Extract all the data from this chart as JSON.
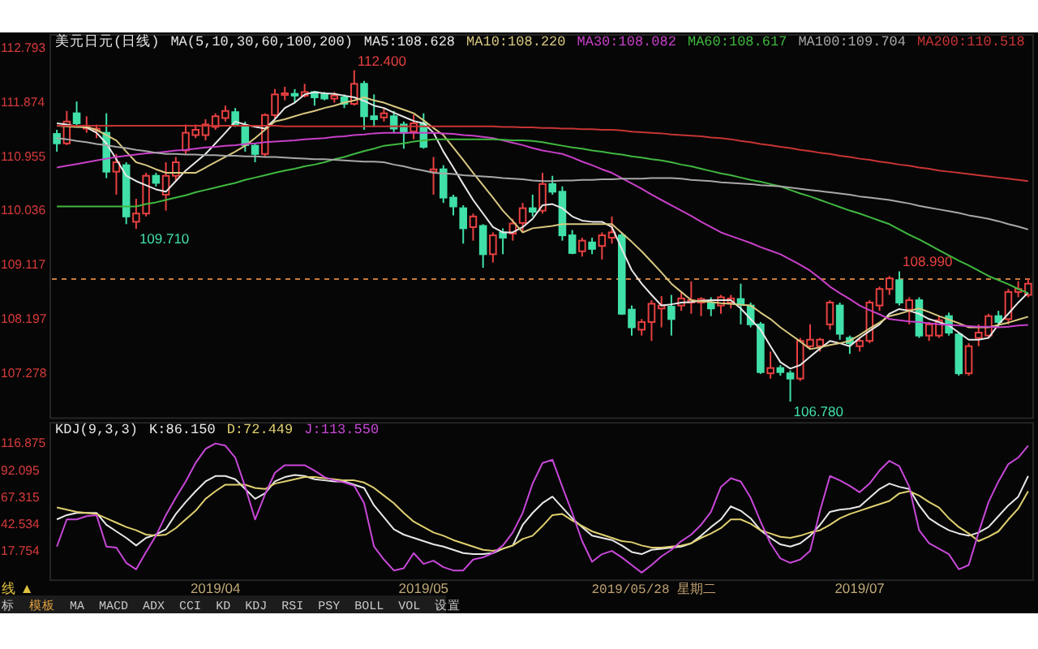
{
  "chart_data": [
    {
      "type": "candlestick",
      "title": "美元日元(日线)",
      "legend_title": "MA(5,10,30,60,100,200)",
      "legend": "top",
      "categories": [
        null,
        null,
        null,
        null,
        null,
        null,
        null,
        null,
        null,
        null,
        null,
        null,
        null,
        null,
        null,
        null,
        null,
        null,
        null,
        null,
        null,
        null,
        null,
        null,
        null,
        null,
        null,
        null,
        null,
        null,
        null,
        null,
        null,
        null,
        null,
        null,
        null,
        null,
        null,
        null,
        null,
        null,
        null,
        null,
        null,
        null,
        null,
        null,
        null,
        null,
        null,
        null,
        null,
        null,
        null,
        null,
        null,
        null,
        null,
        null,
        null,
        null,
        null,
        null,
        null,
        null,
        null,
        null,
        null,
        null,
        null,
        null,
        null,
        null,
        null,
        null,
        null,
        null,
        null,
        null,
        null,
        null,
        null,
        null,
        null,
        null,
        null,
        null,
        null,
        null,
        null,
        null,
        null,
        null,
        null,
        null,
        null,
        null,
        null
      ],
      "ohlc": [
        [
          111.32,
          111.39,
          111.02,
          111.16
        ],
        [
          111.16,
          111.71,
          111.13,
          111.53
        ],
        [
          111.67,
          111.87,
          111.46,
          111.5
        ],
        [
          111.41,
          111.62,
          111.34,
          111.46
        ],
        [
          111.37,
          111.48,
          111.25,
          111.41
        ],
        [
          111.34,
          111.67,
          110.57,
          110.68
        ],
        [
          110.68,
          110.98,
          110.29,
          110.84
        ],
        [
          110.79,
          110.84,
          109.79,
          109.92
        ],
        [
          109.83,
          110.22,
          109.71,
          109.97
        ],
        [
          109.97,
          110.66,
          109.92,
          110.61
        ],
        [
          110.61,
          110.66,
          110.43,
          110.49
        ],
        [
          110.29,
          110.84,
          110.02,
          110.61
        ],
        [
          110.61,
          110.93,
          110.52,
          110.84
        ],
        [
          111.04,
          111.48,
          110.98,
          111.34
        ],
        [
          111.3,
          111.48,
          111.25,
          111.39
        ],
        [
          111.3,
          111.57,
          111.21,
          111.48
        ],
        [
          111.44,
          111.67,
          111.39,
          111.62
        ],
        [
          111.59,
          111.8,
          111.53,
          111.71
        ],
        [
          111.69,
          111.76,
          111.44,
          111.48
        ],
        [
          111.44,
          111.53,
          111.02,
          111.13
        ],
        [
          111.12,
          111.16,
          110.84,
          110.98
        ],
        [
          110.98,
          111.67,
          110.93,
          111.64
        ],
        [
          111.64,
          112.08,
          111.57,
          111.99
        ],
        [
          111.98,
          112.12,
          111.89,
          112.01
        ],
        [
          112.0,
          112.08,
          111.85,
          111.97
        ],
        [
          111.97,
          112.17,
          111.94,
          112.03
        ],
        [
          112.03,
          112.05,
          111.8,
          111.94
        ],
        [
          111.99,
          112.03,
          111.89,
          111.92
        ],
        [
          111.92,
          112.03,
          111.85,
          111.97
        ],
        [
          111.94,
          111.99,
          111.76,
          111.83
        ],
        [
          111.83,
          112.4,
          111.8,
          112.17
        ],
        [
          112.17,
          112.22,
          111.39,
          111.62
        ],
        [
          111.62,
          111.99,
          111.44,
          111.57
        ],
        [
          111.6,
          111.76,
          111.53,
          111.67
        ],
        [
          111.62,
          111.71,
          111.34,
          111.41
        ],
        [
          111.48,
          111.53,
          111.07,
          111.34
        ],
        [
          111.36,
          111.65,
          111.23,
          111.5
        ],
        [
          111.5,
          111.67,
          111.07,
          111.1
        ],
        [
          110.68,
          110.93,
          110.29,
          110.72
        ],
        [
          110.72,
          110.79,
          110.15,
          110.24
        ],
        [
          110.24,
          110.29,
          109.94,
          110.09
        ],
        [
          110.06,
          110.11,
          109.46,
          109.72
        ],
        [
          109.74,
          109.97,
          109.51,
          109.92
        ],
        [
          109.76,
          109.79,
          109.05,
          109.28
        ],
        [
          109.28,
          109.65,
          109.14,
          109.6
        ],
        [
          109.65,
          109.72,
          109.28,
          109.56
        ],
        [
          109.63,
          109.88,
          109.51,
          109.8
        ],
        [
          109.81,
          110.15,
          109.65,
          110.06
        ],
        [
          110.06,
          110.29,
          109.92,
          110.0
        ],
        [
          110.02,
          110.66,
          109.97,
          110.47
        ],
        [
          110.47,
          110.61,
          110.29,
          110.34
        ],
        [
          110.34,
          110.43,
          109.51,
          109.6
        ],
        [
          109.6,
          109.69,
          109.28,
          109.3
        ],
        [
          109.33,
          109.56,
          109.24,
          109.51
        ],
        [
          109.48,
          109.56,
          109.28,
          109.37
        ],
        [
          109.42,
          109.65,
          109.19,
          109.6
        ],
        [
          109.56,
          109.92,
          109.46,
          109.65
        ],
        [
          109.6,
          109.65,
          108.25,
          108.27
        ],
        [
          108.34,
          108.41,
          107.9,
          108.04
        ],
        [
          108.0,
          108.18,
          107.9,
          108.13
        ],
        [
          108.13,
          108.5,
          107.81,
          108.44
        ],
        [
          108.36,
          108.57,
          108.04,
          108.41
        ],
        [
          108.39,
          108.59,
          107.9,
          108.18
        ],
        [
          108.41,
          108.64,
          108.32,
          108.53
        ],
        [
          108.46,
          108.82,
          108.27,
          108.5
        ],
        [
          108.46,
          108.55,
          108.23,
          108.52
        ],
        [
          108.46,
          108.55,
          108.23,
          108.36
        ],
        [
          108.41,
          108.59,
          108.27,
          108.55
        ],
        [
          108.46,
          108.59,
          108.36,
          108.53
        ],
        [
          108.52,
          108.78,
          108.09,
          108.44
        ],
        [
          108.41,
          108.46,
          108.04,
          108.09
        ],
        [
          108.09,
          108.13,
          107.25,
          107.28
        ],
        [
          107.26,
          107.63,
          107.17,
          107.35
        ],
        [
          107.35,
          107.4,
          107.22,
          107.28
        ],
        [
          107.26,
          107.31,
          106.78,
          107.17
        ],
        [
          107.17,
          107.86,
          107.13,
          107.81
        ],
        [
          107.72,
          108.09,
          107.68,
          107.83
        ],
        [
          107.72,
          107.86,
          107.63,
          107.83
        ],
        [
          108.09,
          108.5,
          108.0,
          108.46
        ],
        [
          108.41,
          108.46,
          107.83,
          107.93
        ],
        [
          107.86,
          107.9,
          107.59,
          107.77
        ],
        [
          107.72,
          107.86,
          107.63,
          107.81
        ],
        [
          107.81,
          108.5,
          107.77,
          108.46
        ],
        [
          108.41,
          108.73,
          108.32,
          108.69
        ],
        [
          108.69,
          108.91,
          108.59,
          108.87
        ],
        [
          108.84,
          108.99,
          108.41,
          108.46
        ],
        [
          108.34,
          108.55,
          108.09,
          108.5
        ],
        [
          108.5,
          108.55,
          107.86,
          107.9
        ],
        [
          107.9,
          108.13,
          107.81,
          108.09
        ],
        [
          107.9,
          108.23,
          107.86,
          108.16
        ],
        [
          108.23,
          108.29,
          107.9,
          107.95
        ],
        [
          107.92,
          107.95,
          107.22,
          107.26
        ],
        [
          107.26,
          107.77,
          107.22,
          107.72
        ],
        [
          107.86,
          108.09,
          107.72,
          107.95
        ],
        [
          107.9,
          108.27,
          107.86,
          108.23
        ],
        [
          108.23,
          108.32,
          108.04,
          108.13
        ],
        [
          108.18,
          108.69,
          108.09,
          108.64
        ],
        [
          108.64,
          108.82,
          108.55,
          108.69
        ],
        [
          108.59,
          108.87,
          108.55,
          108.78
        ]
      ],
      "colors": [
        "#40e0a8",
        "#e84040",
        "#40e0a8",
        "#e84040",
        "#e84040",
        "#40e0a8",
        "#e84040",
        "#40e0a8",
        "#e84040",
        "#e84040",
        "#40e0a8",
        "#e84040",
        "#e84040",
        "#e84040",
        "#e84040",
        "#e84040",
        "#e84040",
        "#e84040",
        "#40e0a8",
        "#40e0a8",
        "#40e0a8",
        "#e84040",
        "#e84040",
        "#e84040",
        "#40e0a8",
        "#e84040",
        "#40e0a8",
        "#40e0a8",
        "#e84040",
        "#40e0a8",
        "#e84040",
        "#40e0a8",
        "#40e0a8",
        "#e84040",
        "#40e0a8",
        "#40e0a8",
        "#e84040",
        "#40e0a8",
        "#e84040",
        "#40e0a8",
        "#40e0a8",
        "#40e0a8",
        "#e84040",
        "#40e0a8",
        "#e84040",
        "#40e0a8",
        "#e84040",
        "#e84040",
        "#40e0a8",
        "#e84040",
        "#40e0a8",
        "#40e0a8",
        "#40e0a8",
        "#e84040",
        "#40e0a8",
        "#e84040",
        "#e84040",
        "#40e0a8",
        "#40e0a8",
        "#e84040",
        "#e84040",
        "#e84040",
        "#40e0a8",
        "#e84040",
        "#e84040",
        "#e84040",
        "#40e0a8",
        "#e84040",
        "#e84040",
        "#40e0a8",
        "#40e0a8",
        "#40e0a8",
        "#e84040",
        "#40e0a8",
        "#40e0a8",
        "#e84040",
        "#e84040",
        "#e84040",
        "#e84040",
        "#40e0a8",
        "#40e0a8",
        "#e84040",
        "#e84040",
        "#e84040",
        "#e84040",
        "#40e0a8",
        "#e84040",
        "#40e0a8",
        "#e84040",
        "#e84040",
        "#40e0a8",
        "#40e0a8",
        "#e84040",
        "#e84040",
        "#e84040",
        "#40e0a8",
        "#e84040",
        "#e84040",
        "#e84040"
      ],
      "series": [
        {
          "name": "MA5:108.628",
          "type": "line",
          "color": "#e8e8e8",
          "values": [
            111.5,
            111.48,
            111.45,
            111.43,
            111.34,
            111.16,
            110.89,
            110.61,
            110.52,
            110.45,
            110.38,
            110.34,
            110.52,
            110.7,
            110.84,
            110.98,
            111.16,
            111.34,
            111.53,
            111.48,
            111.44,
            111.41,
            111.57,
            111.76,
            111.85,
            111.99,
            112.03,
            112.01,
            112.0,
            111.97,
            111.94,
            111.88,
            111.8,
            111.76,
            111.68,
            111.61,
            111.54,
            111.5,
            111.34,
            111.02,
            110.75,
            110.47,
            110.2,
            109.97,
            109.74,
            109.65,
            109.65,
            109.74,
            109.88,
            110.11,
            110.13,
            110.06,
            109.92,
            109.85,
            109.83,
            109.83,
            109.74,
            109.37,
            109.01,
            108.78,
            108.59,
            108.41,
            108.43,
            108.46,
            108.47,
            108.49,
            108.5,
            108.5,
            108.5,
            108.36,
            108.18,
            108.0,
            107.72,
            107.45,
            107.34,
            107.4,
            107.54,
            107.68,
            107.81,
            107.77,
            107.72,
            107.86,
            107.98,
            108.09,
            108.27,
            108.35,
            108.32,
            108.27,
            108.18,
            108.13,
            108.07,
            107.95,
            107.83,
            107.83,
            107.86,
            108.09,
            108.27,
            108.46,
            108.63
          ]
        },
        {
          "name": "MA10:108.220",
          "type": "line",
          "color": "#d8c880",
          "values": [
            111.46,
            111.45,
            111.44,
            111.44,
            111.39,
            111.3,
            111.21,
            111.02,
            110.84,
            110.79,
            110.72,
            110.66,
            110.66,
            110.66,
            110.66,
            110.75,
            110.84,
            110.93,
            111.02,
            111.12,
            111.25,
            111.39,
            111.53,
            111.57,
            111.62,
            111.67,
            111.71,
            111.76,
            111.8,
            111.85,
            111.89,
            111.94,
            111.89,
            111.85,
            111.79,
            111.73,
            111.67,
            111.55,
            111.42,
            111.3,
            111.09,
            110.88,
            110.66,
            110.45,
            110.24,
            110.02,
            109.84,
            109.65,
            109.72,
            109.74,
            109.76,
            109.79,
            109.79,
            109.79,
            109.79,
            109.79,
            109.79,
            109.64,
            109.49,
            109.33,
            109.15,
            108.97,
            108.78,
            108.64,
            108.5,
            108.48,
            108.47,
            108.45,
            108.44,
            108.42,
            108.41,
            108.29,
            108.18,
            108.04,
            107.92,
            107.8,
            107.67,
            107.7,
            107.74,
            107.77,
            107.81,
            107.91,
            108.02,
            108.12,
            108.23,
            108.27,
            108.32,
            108.36,
            108.3,
            108.23,
            108.17,
            108.11,
            108.04,
            108.04,
            108.04,
            108.08,
            108.12,
            108.17,
            108.22
          ]
        },
        {
          "name": "MA30:108.082",
          "type": "line",
          "color": "#c840c8",
          "values": [
            110.75,
            110.78,
            110.81,
            110.84,
            110.87,
            110.9,
            110.93,
            110.95,
            110.97,
            110.99,
            111.0,
            111.02,
            111.04,
            111.05,
            111.07,
            111.09,
            111.1,
            111.12,
            111.13,
            111.15,
            111.16,
            111.18,
            111.19,
            111.2,
            111.21,
            111.23,
            111.24,
            111.25,
            111.27,
            111.28,
            111.3,
            111.31,
            111.33,
            111.34,
            111.34,
            111.34,
            111.34,
            111.34,
            111.34,
            111.33,
            111.32,
            111.3,
            111.29,
            111.27,
            111.25,
            111.21,
            111.17,
            111.13,
            111.08,
            111.04,
            111.01,
            110.98,
            110.92,
            110.85,
            110.79,
            110.72,
            110.66,
            110.57,
            110.48,
            110.39,
            110.29,
            110.2,
            110.11,
            110.02,
            109.93,
            109.83,
            109.74,
            109.65,
            109.59,
            109.53,
            109.47,
            109.4,
            109.34,
            109.28,
            109.19,
            109.1,
            109.0,
            108.87,
            108.73,
            108.62,
            108.52,
            108.41,
            108.33,
            108.26,
            108.18,
            108.16,
            108.14,
            108.13,
            108.11,
            108.09,
            108.08,
            108.07,
            108.06,
            108.05,
            108.05,
            108.04,
            108.05,
            108.07,
            108.08
          ]
        },
        {
          "name": "MA60:108.617",
          "type": "line",
          "color": "#40b840",
          "values": [
            110.09,
            110.09,
            110.09,
            110.09,
            110.09,
            110.09,
            110.09,
            110.09,
            110.09,
            110.13,
            110.16,
            110.2,
            110.24,
            110.28,
            110.33,
            110.37,
            110.41,
            110.45,
            110.49,
            110.54,
            110.58,
            110.62,
            110.66,
            110.7,
            110.73,
            110.77,
            110.8,
            110.84,
            110.89,
            110.93,
            110.98,
            111.03,
            111.07,
            111.12,
            111.14,
            111.16,
            111.19,
            111.21,
            111.23,
            111.23,
            111.23,
            111.23,
            111.23,
            111.23,
            111.23,
            111.22,
            111.21,
            111.21,
            111.2,
            111.18,
            111.15,
            111.12,
            111.09,
            111.07,
            111.04,
            111.02,
            110.99,
            110.97,
            110.94,
            110.92,
            110.89,
            110.87,
            110.84,
            110.8,
            110.77,
            110.73,
            110.69,
            110.65,
            110.62,
            110.58,
            110.54,
            110.51,
            110.47,
            110.43,
            110.37,
            110.31,
            110.26,
            110.2,
            110.14,
            110.08,
            110.02,
            109.97,
            109.91,
            109.85,
            109.79,
            109.7,
            109.61,
            109.53,
            109.44,
            109.35,
            109.26,
            109.17,
            109.09,
            109.0,
            108.91,
            108.84,
            108.77,
            108.69,
            108.62
          ]
        },
        {
          "name": "MA100:109.704",
          "type": "line",
          "color": "#a8a8a8",
          "values": [
            111.25,
            111.23,
            111.2,
            111.18,
            111.15,
            111.13,
            111.1,
            111.08,
            111.05,
            111.03,
            111.0,
            110.98,
            110.98,
            110.97,
            110.97,
            110.96,
            110.96,
            110.95,
            110.95,
            110.94,
            110.94,
            110.93,
            110.93,
            110.92,
            110.91,
            110.9,
            110.89,
            110.89,
            110.88,
            110.87,
            110.86,
            110.85,
            110.85,
            110.84,
            110.8,
            110.77,
            110.73,
            110.7,
            110.66,
            110.65,
            110.64,
            110.62,
            110.61,
            110.6,
            110.59,
            110.57,
            110.56,
            110.55,
            110.53,
            110.52,
            110.52,
            110.53,
            110.53,
            110.54,
            110.54,
            110.55,
            110.55,
            110.56,
            110.56,
            110.56,
            110.57,
            110.57,
            110.57,
            110.56,
            110.54,
            110.53,
            110.52,
            110.5,
            110.49,
            110.48,
            110.47,
            110.45,
            110.44,
            110.43,
            110.41,
            110.39,
            110.37,
            110.35,
            110.33,
            110.31,
            110.29,
            110.26,
            110.24,
            110.22,
            110.2,
            110.17,
            110.14,
            110.1,
            110.07,
            110.04,
            110.01,
            109.98,
            109.94,
            109.91,
            109.88,
            109.84,
            109.79,
            109.75,
            109.7
          ]
        },
        {
          "name": "MA200:110.518",
          "type": "line",
          "color": "#c83434",
          "values": [
            111.46,
            111.46,
            111.46,
            111.46,
            111.46,
            111.46,
            111.46,
            111.46,
            111.46,
            111.46,
            111.46,
            111.46,
            111.46,
            111.46,
            111.46,
            111.46,
            111.46,
            111.46,
            111.46,
            111.46,
            111.46,
            111.46,
            111.46,
            111.45,
            111.45,
            111.45,
            111.45,
            111.45,
            111.45,
            111.45,
            111.45,
            111.45,
            111.45,
            111.45,
            111.45,
            111.45,
            111.45,
            111.45,
            111.45,
            111.45,
            111.45,
            111.45,
            111.45,
            111.45,
            111.45,
            111.44,
            111.44,
            111.43,
            111.43,
            111.42,
            111.42,
            111.41,
            111.41,
            111.4,
            111.4,
            111.39,
            111.39,
            111.38,
            111.36,
            111.35,
            111.34,
            111.33,
            111.31,
            111.3,
            111.29,
            111.28,
            111.26,
            111.25,
            111.23,
            111.2,
            111.18,
            111.15,
            111.13,
            111.1,
            111.08,
            111.05,
            111.03,
            111.0,
            110.98,
            110.95,
            110.93,
            110.9,
            110.88,
            110.85,
            110.83,
            110.8,
            110.78,
            110.75,
            110.73,
            110.7,
            110.68,
            110.66,
            110.64,
            110.62,
            110.6,
            110.58,
            110.56,
            110.54,
            110.52
          ]
        }
      ],
      "ylim": [
        106.5,
        113.0
      ],
      "yticks": [
        112.793,
        111.874,
        110.955,
        110.036,
        109.117,
        108.197,
        107.278
      ],
      "ref_lines": [
        {
          "axis": "y",
          "value": 108.86,
          "color": "#c87a3c",
          "line_style": "dashed"
        }
      ],
      "annotations": [
        "112.400",
        "106.780",
        "109.710",
        {
          "text": "108.990",
          "y": 108.99
        }
      ]
    },
    {
      "type": "line",
      "legend_title": "KDJ(9,3,3)",
      "legend": "top left",
      "categories": [
        null,
        null,
        null,
        null,
        null,
        null,
        null,
        null,
        null,
        null,
        null,
        null,
        null,
        null,
        null,
        null,
        "2019/04",
        null,
        null,
        null,
        null,
        null,
        null,
        null,
        null,
        null,
        null,
        null,
        null,
        null,
        null,
        null,
        null,
        null,
        null,
        null,
        null,
        "2019/05",
        null,
        null,
        null,
        null,
        null,
        null,
        null,
        null,
        null,
        null,
        null,
        null,
        null,
        null,
        null,
        null,
        null,
        null,
        null,
        null,
        null,
        null,
        null,
        null,
        null,
        null,
        null,
        null,
        null,
        null,
        null,
        null,
        null,
        null,
        null,
        null,
        null,
        null,
        null,
        null,
        null,
        null,
        null,
        "2019/07",
        null,
        null,
        null,
        null,
        null,
        null,
        null,
        null,
        null,
        null,
        null,
        null,
        null,
        null,
        null,
        null,
        null
      ],
      "series": [
        {
          "name": "K:86.150",
          "color": "#e8e8e8",
          "values": [
            46,
            50,
            52,
            52,
            52,
            41,
            35,
            29,
            22,
            29,
            32,
            37,
            51,
            62,
            72,
            81,
            86,
            86,
            83,
            74,
            65,
            70,
            81,
            85,
            87,
            86,
            83,
            82,
            81,
            81,
            78,
            75,
            59,
            48,
            37,
            32,
            29,
            26,
            23,
            21,
            18,
            15,
            14,
            14,
            15,
            19,
            22,
            41,
            52,
            61,
            67,
            57,
            47,
            39,
            31,
            29,
            27,
            22,
            16,
            14,
            18,
            19,
            20,
            21,
            24,
            31,
            39,
            46,
            58,
            54,
            47,
            36,
            29,
            23,
            21,
            24,
            31,
            41,
            53,
            55,
            56,
            58,
            66,
            74,
            79,
            76,
            74,
            59,
            47,
            41,
            36,
            33,
            31,
            34,
            39,
            49,
            59,
            67,
            86
          ]
        },
        {
          "name": "D:72.449",
          "color": "#e0d070",
          "values": [
            57,
            55,
            53,
            52,
            51,
            47,
            43,
            39,
            36,
            32,
            31,
            32,
            38,
            46,
            54,
            65,
            72,
            78,
            78,
            78,
            75,
            74,
            79,
            81,
            83,
            85,
            85,
            84,
            83,
            82,
            82,
            80,
            75,
            68,
            61,
            52,
            44,
            39,
            34,
            31,
            27,
            24,
            21,
            18,
            17,
            19,
            22,
            28,
            31,
            40,
            50,
            51,
            45,
            40,
            35,
            32,
            29,
            26,
            25,
            22,
            20,
            20,
            21,
            22,
            24,
            29,
            33,
            38,
            46,
            46,
            42,
            36,
            33,
            30,
            29,
            31,
            34,
            36,
            41,
            47,
            51,
            54,
            57,
            60,
            63,
            70,
            72,
            68,
            62,
            57,
            47,
            39,
            33,
            26,
            30,
            35,
            46,
            56,
            72
          ]
        },
        {
          "name": "J:113.550",
          "color": "#c848d8",
          "values": [
            21,
            46,
            46,
            49,
            50,
            21,
            20,
            6,
            0,
            16,
            31,
            50,
            66,
            81,
            98,
            111,
            116,
            114,
            103,
            76,
            46,
            69,
            89,
            96,
            96,
            96,
            91,
            85,
            82,
            80,
            77,
            61,
            21,
            9,
            -1,
            1,
            15,
            5,
            8,
            2,
            -1,
            -1,
            9,
            11,
            15,
            22,
            34,
            52,
            79,
            98,
            101,
            76,
            52,
            26,
            7,
            14,
            17,
            11,
            4,
            -3,
            4,
            12,
            18,
            26,
            32,
            41,
            53,
            76,
            84,
            81,
            66,
            44,
            24,
            10,
            6,
            9,
            17,
            54,
            86,
            82,
            77,
            71,
            79,
            91,
            100,
            95,
            76,
            36,
            24,
            19,
            14,
            0,
            4,
            34,
            62,
            81,
            97,
            103,
            114
          ]
        }
      ],
      "ylim": [
        -10,
        135
      ],
      "yticks": [
        116.875,
        92.095,
        67.315,
        42.534,
        17.754
      ],
      "annotations": [
        "2019/05/28 星期二",
        "线 ▲",
        "标",
        "模板",
        "MA",
        "MACD",
        "ADX",
        "CCI",
        "KD",
        "KDJ",
        "RSI",
        "PSY",
        "BOLL",
        "VOL",
        "设置"
      ]
    }
  ]
}
